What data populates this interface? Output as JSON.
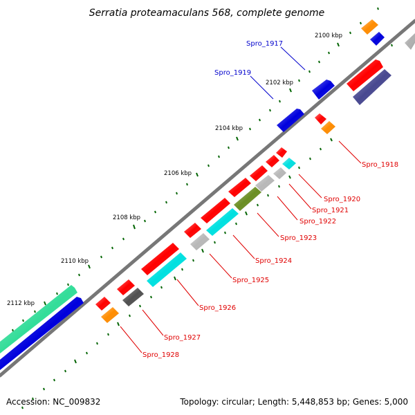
{
  "title": "Serratia proteamaculans 568, complete genome",
  "footer": {
    "accession": "Accession: NC_009832",
    "summary": "Topology: circular; Length: 5,448,853 bp; Genes: 5,000"
  },
  "kbp_labels": [
    "2100 kbp",
    "2102 kbp",
    "2104 kbp",
    "2106 kbp",
    "2108 kbp",
    "2110 kbp",
    "2112 kbp"
  ],
  "colors": {
    "red": "#ff0000",
    "orange": "#ff8c00",
    "blue": "#0000dd",
    "cyan": "#00e0e0",
    "grey": "#b8b8b8",
    "darkgrey": "#505050",
    "olive": "#6b8e23",
    "indigo": "#484890",
    "teal": "#33dd99",
    "backbone": "#777777",
    "tick": "#006400",
    "label_red": "#e00000",
    "label_blue": "#0000cc"
  },
  "gene_labels": {
    "spro_1917": "Spro_1917",
    "spro_1919": "Spro_1919",
    "spro_1918": "Spro_1918",
    "spro_1920": "Spro_1920",
    "spro_1921": "Spro_1921",
    "spro_1922": "Spro_1922",
    "spro_1923": "Spro_1923",
    "spro_1924": "Spro_1924",
    "spro_1925": "Spro_1925",
    "spro_1926": "Spro_1926",
    "spro_1927": "Spro_1927",
    "spro_1928": "Spro_1928"
  }
}
